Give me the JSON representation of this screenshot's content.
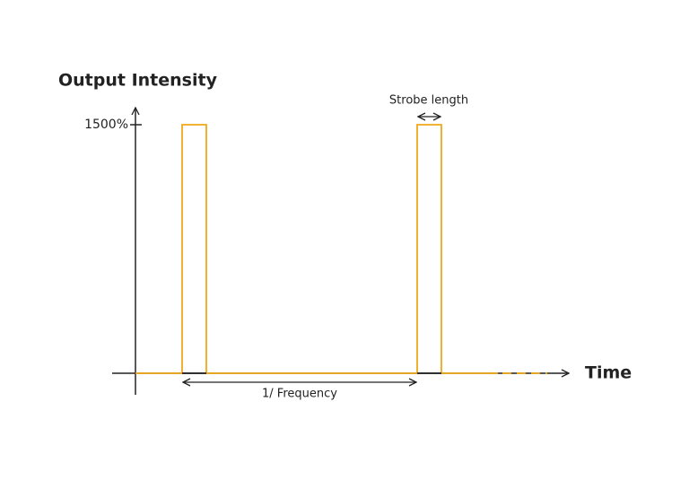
{
  "diagram": {
    "y_axis_label": "Output Intensity",
    "x_axis_label": "Time",
    "y_tick_label": "1500%",
    "strobe_label": "Strobe length",
    "period_label": "1/ Frequency"
  }
}
